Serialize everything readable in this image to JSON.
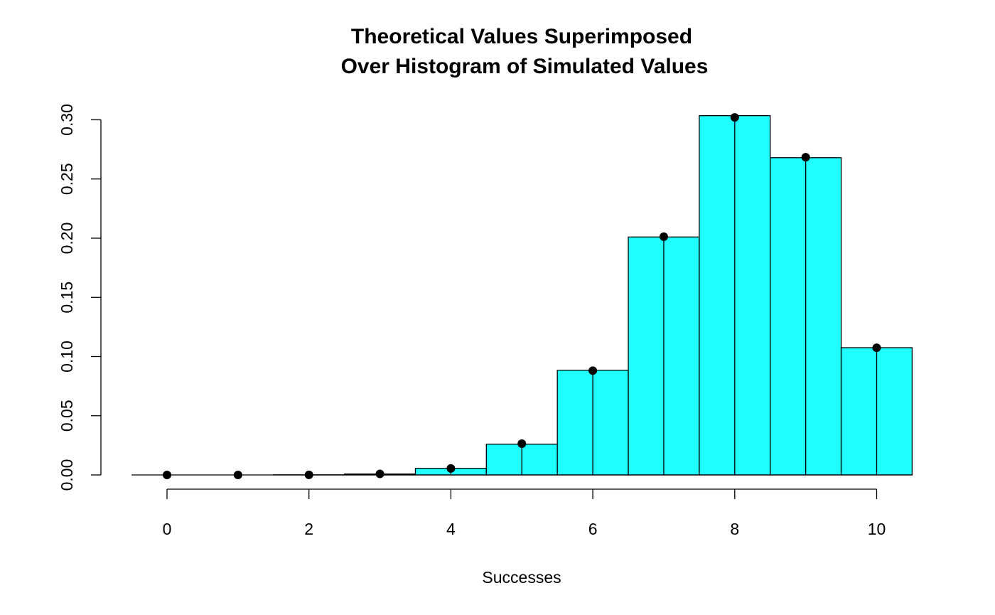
{
  "chart_data": {
    "type": "bar",
    "title_lines": [
      "Theoretical Values Superimposed",
      "Over Histogram of Simulated Values"
    ],
    "xlabel": "Successes",
    "ylabel": "",
    "xlim": [
      -0.5,
      10.5
    ],
    "ylim": [
      0,
      0.3
    ],
    "x_ticks": [
      "0",
      "2",
      "4",
      "6",
      "8",
      "10"
    ],
    "y_ticks": [
      "0.00",
      "0.05",
      "0.10",
      "0.15",
      "0.20",
      "0.25",
      "0.30"
    ],
    "grid": false,
    "bar_color": "#20FFFF",
    "point_color": "#000000",
    "histogram": {
      "name": "Simulated",
      "bin_edges": [
        -0.5,
        0.5,
        1.5,
        2.5,
        3.5,
        4.5,
        5.5,
        6.5,
        7.5,
        8.5,
        9.5,
        10.5
      ],
      "values": [
        0.0,
        0.0,
        0.0001,
        0.0008,
        0.0056,
        0.026,
        0.0885,
        0.201,
        0.3035,
        0.268,
        0.1075
      ]
    },
    "points": {
      "name": "Theoretical",
      "x": [
        0,
        1,
        2,
        3,
        4,
        5,
        6,
        7,
        8,
        9,
        10
      ],
      "y": [
        0.0,
        0.0,
        0.0001,
        0.0009,
        0.0055,
        0.0264,
        0.0881,
        0.2013,
        0.302,
        0.2684,
        0.1074
      ]
    }
  }
}
